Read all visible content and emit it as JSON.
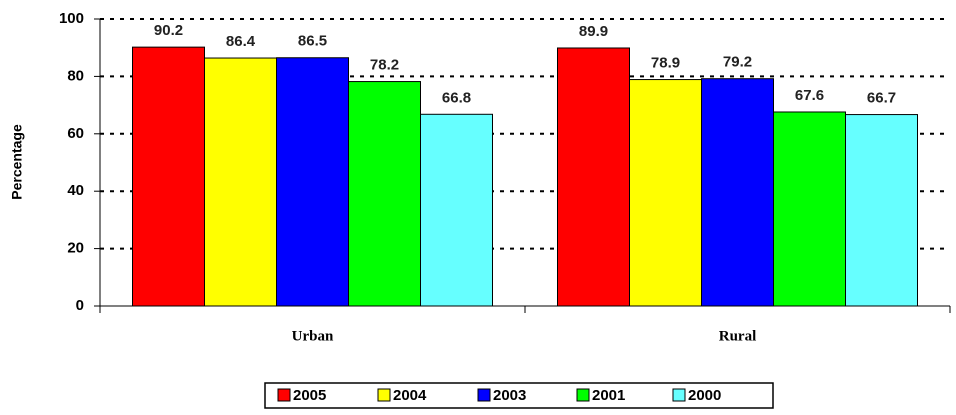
{
  "chart_data": {
    "type": "bar",
    "y_label": "Percentage",
    "categories": [
      "Urban",
      "Rural"
    ],
    "series": [
      {
        "name": "2005",
        "color": "#ff0000",
        "values": [
          90.2,
          89.9
        ]
      },
      {
        "name": "2004",
        "color": "#ffff00",
        "values": [
          86.4,
          78.9
        ]
      },
      {
        "name": "2003",
        "color": "#0000ff",
        "values": [
          86.5,
          79.2
        ]
      },
      {
        "name": "2001",
        "color": "#00ff00",
        "values": [
          78.2,
          67.6
        ]
      },
      {
        "name": "2000",
        "color": "#66ffff",
        "values": [
          66.8,
          66.7
        ]
      }
    ],
    "ylim": [
      0,
      100
    ],
    "yticks": [
      0,
      20,
      40,
      60,
      80,
      100
    ],
    "grid": true,
    "legend": "bottom"
  }
}
